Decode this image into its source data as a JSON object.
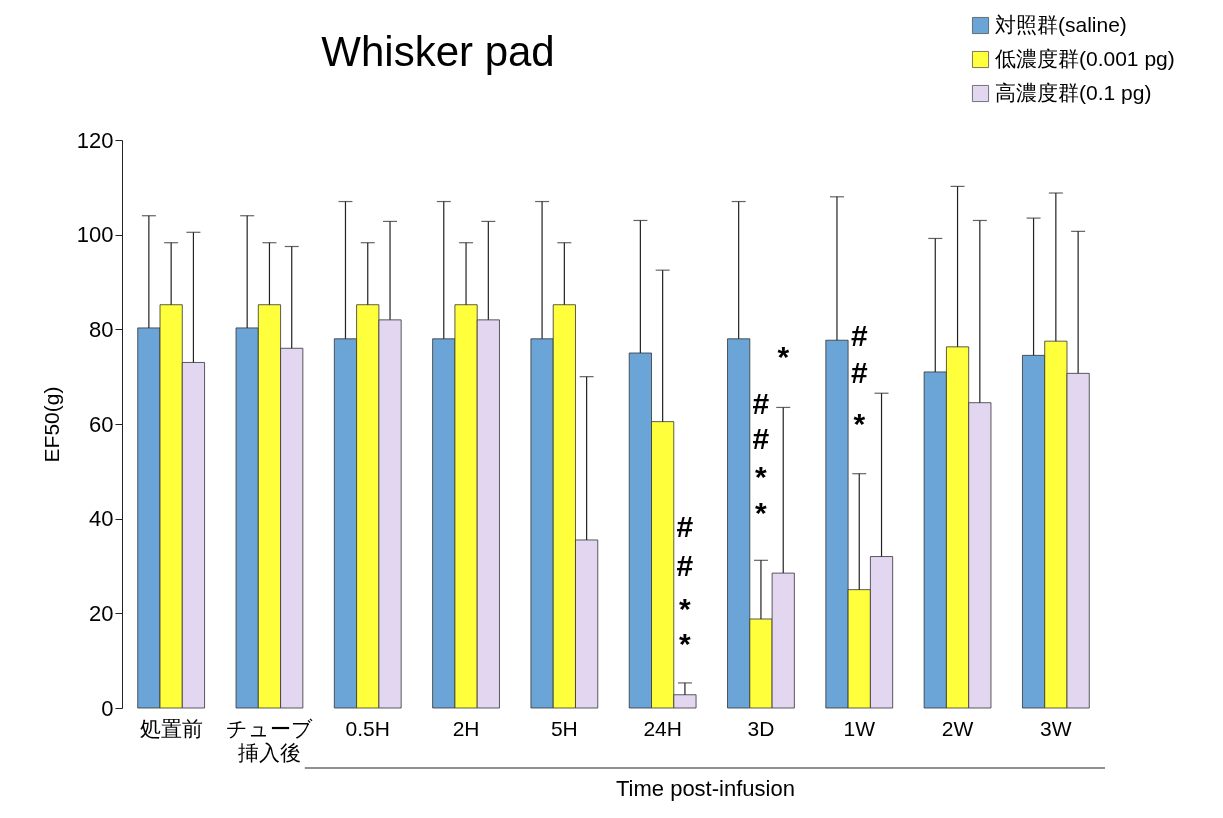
{
  "chart_data": {
    "type": "bar",
    "title": "Whisker pad",
    "xlabel": "Time post-infusion",
    "ylabel": "EF50(g)",
    "categories": [
      "処置前",
      "チューブ挿入後",
      "0.5H",
      "2H",
      "5H",
      "24H",
      "3D",
      "1W",
      "2W",
      "3W"
    ],
    "series": [
      {
        "name": "対照群(saline)",
        "color": "#6ba5d7",
        "values": [
          80.3,
          80.3,
          78,
          78,
          78,
          75,
          78,
          77.7,
          71,
          74.5
        ],
        "errors": [
          [
            80.3,
            104
          ],
          [
            80.3,
            104
          ],
          [
            78,
            107
          ],
          [
            78,
            107
          ],
          [
            78,
            107
          ],
          [
            75,
            103
          ],
          [
            78,
            107
          ],
          [
            77.7,
            108
          ],
          [
            71,
            99.2
          ],
          [
            74.5,
            103.5
          ]
        ]
      },
      {
        "name": "低濃度群(0.001 pg)",
        "color": "#ffff3c",
        "values": [
          85.2,
          85.2,
          85.2,
          85.2,
          85.2,
          60.5,
          18.8,
          25,
          76.3,
          77.5
        ],
        "errors": [
          [
            85.2,
            98.3
          ],
          [
            85.2,
            98.3
          ],
          [
            85.2,
            98.3
          ],
          [
            85.2,
            98.3
          ],
          [
            85.2,
            98.3
          ],
          [
            60.5,
            92.5
          ],
          [
            18.8,
            31.2
          ],
          [
            25,
            49.5
          ],
          [
            76.3,
            110.2
          ],
          [
            77.5,
            108.8
          ]
        ]
      },
      {
        "name": "高濃度群(0.1 pg)",
        "color": "#e2d6f0",
        "values": [
          73,
          76,
          82,
          82,
          35.5,
          2.8,
          28.5,
          32,
          64.5,
          70.7
        ],
        "errors": [
          [
            73,
            100.5
          ],
          [
            76,
            97.5
          ],
          [
            82,
            102.8
          ],
          [
            82,
            102.8
          ],
          [
            35.5,
            70
          ],
          [
            2.8,
            5.3
          ],
          [
            28.5,
            63.5
          ],
          [
            32,
            66.5
          ],
          [
            64.5,
            103
          ],
          [
            70.7,
            100.7
          ]
        ]
      }
    ],
    "ylim": [
      0,
      120
    ],
    "yticks": [
      0,
      20,
      40,
      60,
      80,
      100,
      120
    ],
    "grid": false,
    "legend": "top right",
    "annotations": [
      "#",
      "#",
      "*",
      "*",
      "*",
      "#",
      "#",
      "*",
      "*",
      "#",
      "#",
      "*"
    ]
  }
}
